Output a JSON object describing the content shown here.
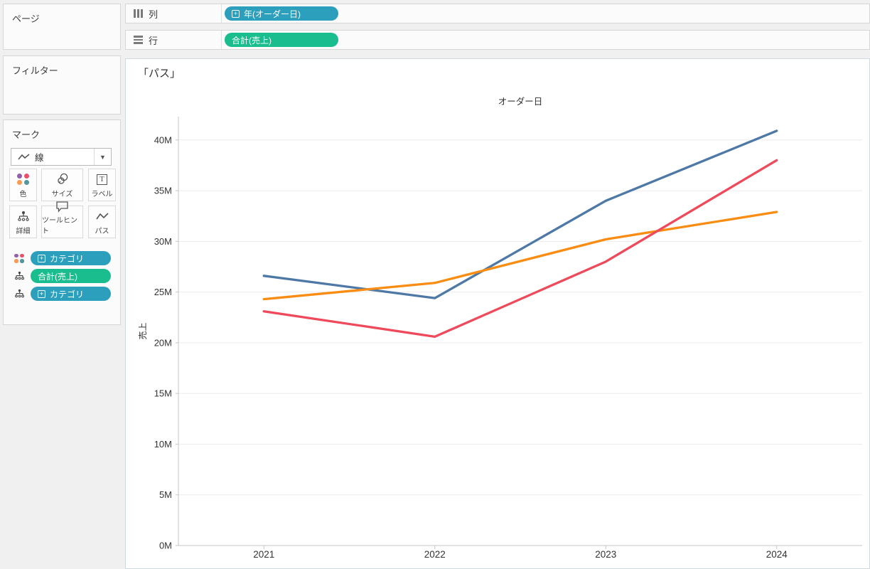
{
  "colors": {
    "pill_blue": "#2b9fbc",
    "pill_green": "#1abd8e",
    "line_blue": "#4e79a7",
    "line_orange": "#f98d13",
    "line_red": "#ee4a5c",
    "grid": "#ececec",
    "axis": "#c6c6c6",
    "tick_text": "#333333"
  },
  "shelves": {
    "columns": {
      "label": "列",
      "pill": {
        "text": "年(オーダー日)",
        "expand": "+"
      }
    },
    "rows": {
      "label": "行",
      "pill": {
        "text": "合計(売上)"
      }
    }
  },
  "sidebar": {
    "pages": {
      "title": "ページ"
    },
    "filters": {
      "title": "フィルター"
    },
    "marks": {
      "title": "マーク",
      "mark_type": {
        "label": "線"
      },
      "buttons": {
        "color": {
          "label": "色"
        },
        "size": {
          "label": "サイズ"
        },
        "label": {
          "label": "ラベル"
        },
        "detail": {
          "label": "詳細"
        },
        "tooltip": {
          "label": "ツールヒント"
        },
        "path": {
          "label": "パス"
        }
      },
      "pills": [
        {
          "icon": "color-dots-icon",
          "text": "カテゴリ",
          "fill": "#2b9fbc",
          "expand": "+"
        },
        {
          "icon": "detail-icon",
          "text": "合計(売上)",
          "fill": "#1abd8e",
          "expand": ""
        },
        {
          "icon": "detail-icon",
          "text": "カテゴリ",
          "fill": "#2b9fbc",
          "expand": "+"
        }
      ]
    }
  },
  "sheet": {
    "title": "「パス」"
  },
  "chart_data": {
    "type": "line",
    "title": "オーダー日",
    "xlabel": "",
    "ylabel": "売上",
    "x": [
      "2021",
      "2022",
      "2023",
      "2024"
    ],
    "series": [
      {
        "name": "series-blue",
        "color": "#4e79a7",
        "values": [
          26.6,
          24.4,
          34.0,
          40.9
        ]
      },
      {
        "name": "series-orange",
        "color": "#f98d13",
        "values": [
          24.3,
          25.9,
          30.2,
          32.9
        ]
      },
      {
        "name": "series-red",
        "color": "#ee4a5c",
        "values": [
          23.1,
          20.6,
          28.0,
          38.0
        ]
      }
    ],
    "y_ticks": [
      0,
      5,
      10,
      15,
      20,
      25,
      30,
      35,
      40
    ],
    "y_tick_suffix": "M",
    "ylim": [
      0,
      42.3
    ],
    "grid": true,
    "legend": "none"
  }
}
